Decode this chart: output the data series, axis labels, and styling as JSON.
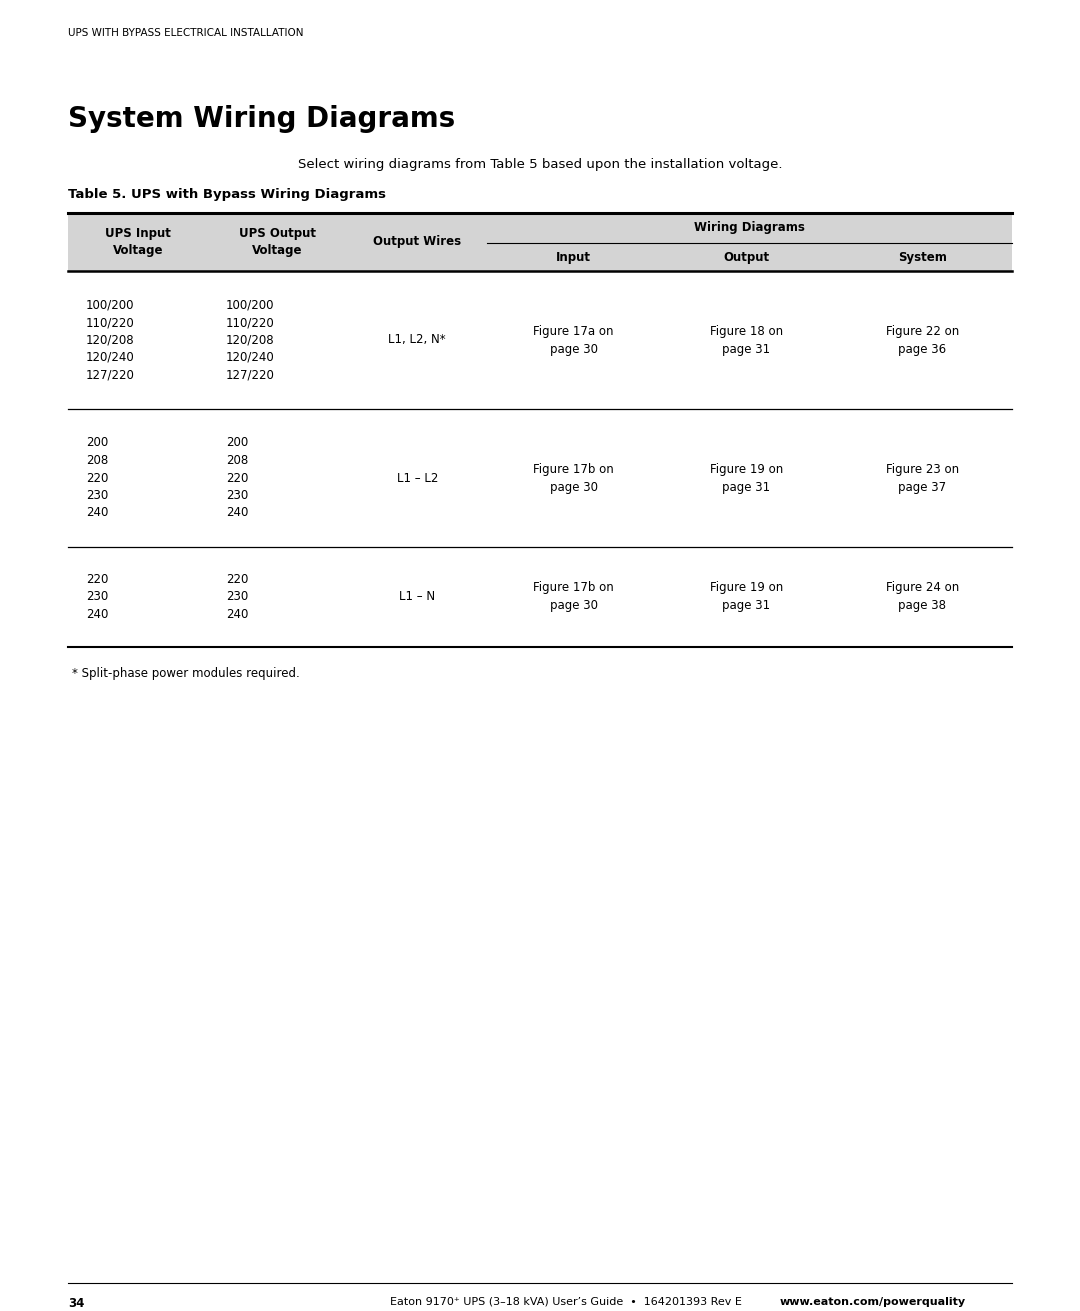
{
  "page_header": "UPS WITH BYPASS ELECTRICAL INSTALLATION",
  "section_title": "System Wiring Diagrams",
  "subtitle": "Select wiring diagrams from Table 5 based upon the installation voltage.",
  "table_title": "Table 5. UPS with Bypass Wiring Diagrams",
  "header_bg_color": "#d4d4d4",
  "rows": [
    {
      "ups_input": [
        "100/200",
        "110/220",
        "120/208",
        "120/240",
        "127/220"
      ],
      "ups_output": [
        "100/200",
        "110/220",
        "120/208",
        "120/240",
        "127/220"
      ],
      "output_wires": "L1, L2, N*",
      "input_diag": "Figure 17a on\npage 30",
      "output_diag": "Figure 18 on\npage 31",
      "system_diag": "Figure 22 on\npage 36"
    },
    {
      "ups_input": [
        "200",
        "208",
        "220",
        "230",
        "240"
      ],
      "ups_output": [
        "200",
        "208",
        "220",
        "230",
        "240"
      ],
      "output_wires": "L1 – L2",
      "input_diag": "Figure 17b on\npage 30",
      "output_diag": "Figure 19 on\npage 31",
      "system_diag": "Figure 23 on\npage 37"
    },
    {
      "ups_input": [
        "220",
        "230",
        "240"
      ],
      "ups_output": [
        "220",
        "230",
        "240"
      ],
      "output_wires": "L1 – N",
      "input_diag": "Figure 17b on\npage 30",
      "output_diag": "Figure 19 on\npage 31",
      "system_diag": "Figure 24 on\npage 38"
    }
  ],
  "footnote": "* Split-phase power modules required.",
  "footer_page": "34",
  "footer_text": "Eaton 9170⁺ UPS (3–18 kVA) User’s Guide  •  164201393 Rev E ",
  "footer_link": "www.eaton.com/powerquality",
  "background_color": "#ffffff",
  "text_color": "#000000",
  "line_color": "#000000"
}
